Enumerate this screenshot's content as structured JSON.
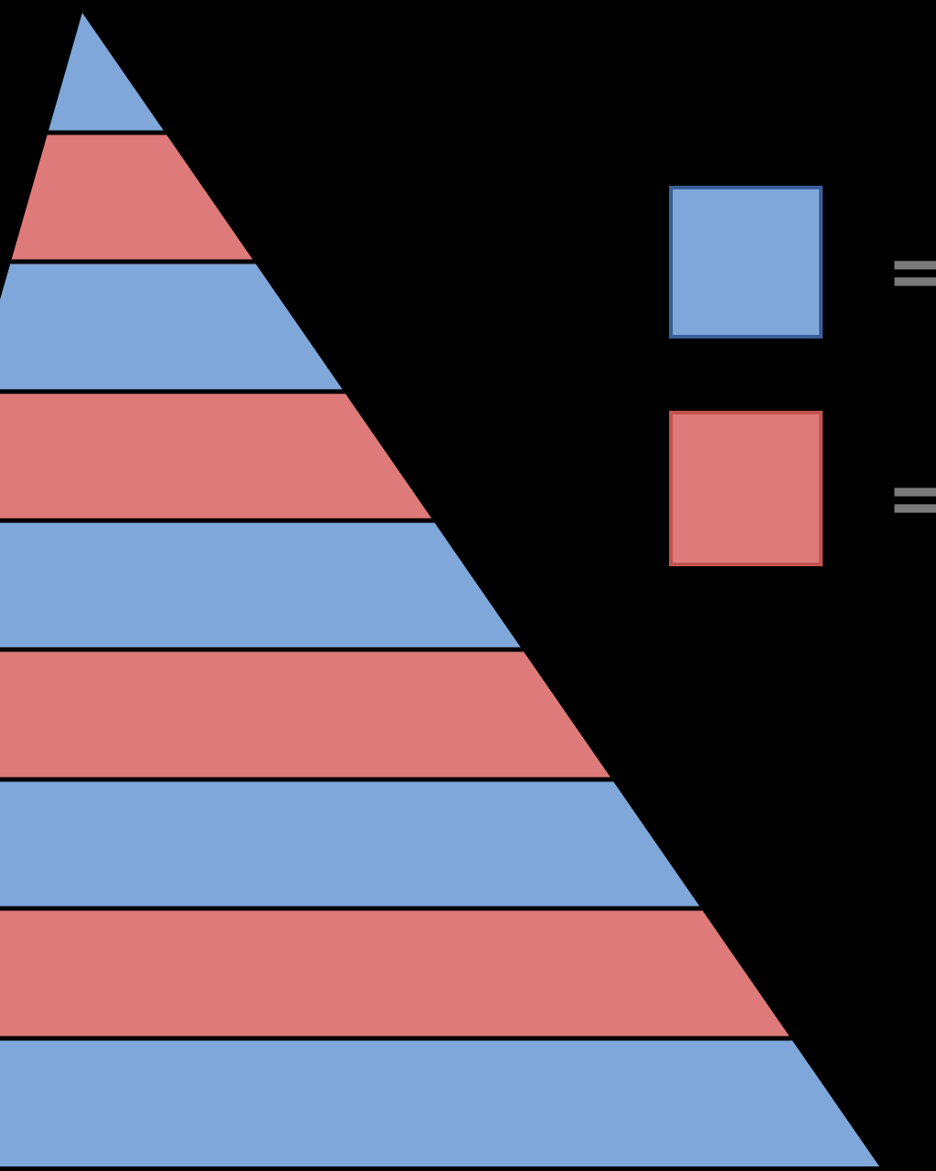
{
  "legend": [
    {
      "symbol": "="
    },
    {
      "symbol": "="
    }
  ]
}
